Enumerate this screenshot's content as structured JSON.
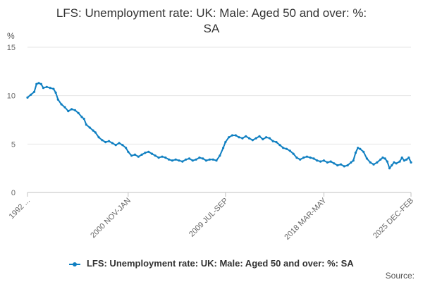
{
  "chart_data": {
    "type": "line",
    "title_lines": [
      "LFS: Unemployment rate: UK: Male: Aged 50 and over: %:",
      "SA"
    ],
    "ylabel": "%",
    "ylim": [
      0,
      15
    ],
    "yticks": [
      0,
      5,
      10,
      15
    ],
    "xlim": [
      1992.0,
      2025.9
    ],
    "x_tick_labels": [
      {
        "x": 1992.0,
        "label": "1992 ..."
      },
      {
        "x": 2000.9,
        "label": "2000 NOV-JAN"
      },
      {
        "x": 2009.5,
        "label": "2009 JUL-SEP"
      },
      {
        "x": 2018.2,
        "label": "2018 MAR-MAY"
      },
      {
        "x": 2025.9,
        "label": "2025 DEC-FEB"
      }
    ],
    "grid": true,
    "legend_position": "bottom",
    "series": [
      {
        "name": "LFS: Unemployment rate: UK: Male: Aged 50 and over: %: SA",
        "color": "#0f7fc1",
        "points": [
          [
            1992.0,
            9.8
          ],
          [
            1992.3,
            10.1
          ],
          [
            1992.6,
            10.4
          ],
          [
            1992.8,
            11.2
          ],
          [
            1993.0,
            11.3
          ],
          [
            1993.2,
            11.2
          ],
          [
            1993.4,
            10.8
          ],
          [
            1993.7,
            10.9
          ],
          [
            1994.0,
            10.8
          ],
          [
            1994.3,
            10.7
          ],
          [
            1994.5,
            10.3
          ],
          [
            1994.7,
            9.6
          ],
          [
            1995.0,
            9.1
          ],
          [
            1995.3,
            8.8
          ],
          [
            1995.6,
            8.4
          ],
          [
            1995.9,
            8.6
          ],
          [
            1996.2,
            8.5
          ],
          [
            1996.5,
            8.2
          ],
          [
            1996.8,
            7.8
          ],
          [
            1997.0,
            7.6
          ],
          [
            1997.2,
            7.0
          ],
          [
            1997.5,
            6.7
          ],
          [
            1997.8,
            6.4
          ],
          [
            1998.0,
            6.2
          ],
          [
            1998.3,
            5.7
          ],
          [
            1998.6,
            5.4
          ],
          [
            1998.9,
            5.2
          ],
          [
            1999.2,
            5.3
          ],
          [
            1999.5,
            5.1
          ],
          [
            1999.8,
            4.9
          ],
          [
            2000.1,
            5.1
          ],
          [
            2000.4,
            4.9
          ],
          [
            2000.7,
            4.6
          ],
          [
            2000.9,
            4.2
          ],
          [
            2001.2,
            3.8
          ],
          [
            2001.5,
            3.9
          ],
          [
            2001.8,
            3.7
          ],
          [
            2002.1,
            3.9
          ],
          [
            2002.4,
            4.1
          ],
          [
            2002.7,
            4.2
          ],
          [
            2003.0,
            4.0
          ],
          [
            2003.3,
            3.8
          ],
          [
            2003.6,
            3.6
          ],
          [
            2003.9,
            3.7
          ],
          [
            2004.2,
            3.6
          ],
          [
            2004.5,
            3.4
          ],
          [
            2004.8,
            3.3
          ],
          [
            2005.1,
            3.4
          ],
          [
            2005.4,
            3.3
          ],
          [
            2005.7,
            3.2
          ],
          [
            2006.0,
            3.4
          ],
          [
            2006.3,
            3.5
          ],
          [
            2006.6,
            3.3
          ],
          [
            2006.9,
            3.4
          ],
          [
            2007.2,
            3.6
          ],
          [
            2007.5,
            3.5
          ],
          [
            2007.8,
            3.3
          ],
          [
            2008.1,
            3.4
          ],
          [
            2008.4,
            3.4
          ],
          [
            2008.7,
            3.3
          ],
          [
            2009.0,
            3.8
          ],
          [
            2009.3,
            4.6
          ],
          [
            2009.5,
            5.2
          ],
          [
            2009.8,
            5.7
          ],
          [
            2010.1,
            5.9
          ],
          [
            2010.4,
            5.9
          ],
          [
            2010.7,
            5.7
          ],
          [
            2011.0,
            5.6
          ],
          [
            2011.3,
            5.8
          ],
          [
            2011.6,
            5.6
          ],
          [
            2011.9,
            5.4
          ],
          [
            2012.2,
            5.6
          ],
          [
            2012.5,
            5.8
          ],
          [
            2012.8,
            5.5
          ],
          [
            2013.1,
            5.7
          ],
          [
            2013.4,
            5.6
          ],
          [
            2013.7,
            5.3
          ],
          [
            2014.0,
            5.2
          ],
          [
            2014.3,
            4.9
          ],
          [
            2014.6,
            4.6
          ],
          [
            2014.9,
            4.5
          ],
          [
            2015.2,
            4.3
          ],
          [
            2015.5,
            4.0
          ],
          [
            2015.8,
            3.6
          ],
          [
            2016.1,
            3.4
          ],
          [
            2016.4,
            3.6
          ],
          [
            2016.7,
            3.7
          ],
          [
            2017.0,
            3.6
          ],
          [
            2017.3,
            3.5
          ],
          [
            2017.6,
            3.3
          ],
          [
            2017.9,
            3.2
          ],
          [
            2018.2,
            3.3
          ],
          [
            2018.5,
            3.1
          ],
          [
            2018.8,
            3.2
          ],
          [
            2019.1,
            3.0
          ],
          [
            2019.4,
            2.8
          ],
          [
            2019.7,
            2.9
          ],
          [
            2020.0,
            2.7
          ],
          [
            2020.3,
            2.8
          ],
          [
            2020.6,
            3.1
          ],
          [
            2020.8,
            3.3
          ],
          [
            2021.0,
            4.1
          ],
          [
            2021.2,
            4.6
          ],
          [
            2021.4,
            4.5
          ],
          [
            2021.7,
            4.2
          ],
          [
            2022.0,
            3.5
          ],
          [
            2022.3,
            3.1
          ],
          [
            2022.6,
            2.9
          ],
          [
            2022.9,
            3.1
          ],
          [
            2023.2,
            3.4
          ],
          [
            2023.4,
            3.6
          ],
          [
            2023.6,
            3.5
          ],
          [
            2023.8,
            3.2
          ],
          [
            2024.0,
            2.5
          ],
          [
            2024.2,
            2.8
          ],
          [
            2024.4,
            3.1
          ],
          [
            2024.6,
            3.0
          ],
          [
            2024.9,
            3.2
          ],
          [
            2025.1,
            3.6
          ],
          [
            2025.3,
            3.3
          ],
          [
            2025.5,
            3.4
          ],
          [
            2025.7,
            3.6
          ],
          [
            2025.9,
            3.1
          ]
        ]
      }
    ]
  },
  "legend": {
    "label": "LFS: Unemployment rate: UK: Male: Aged 50 and over: %: SA"
  },
  "source": {
    "label": "Source:"
  }
}
